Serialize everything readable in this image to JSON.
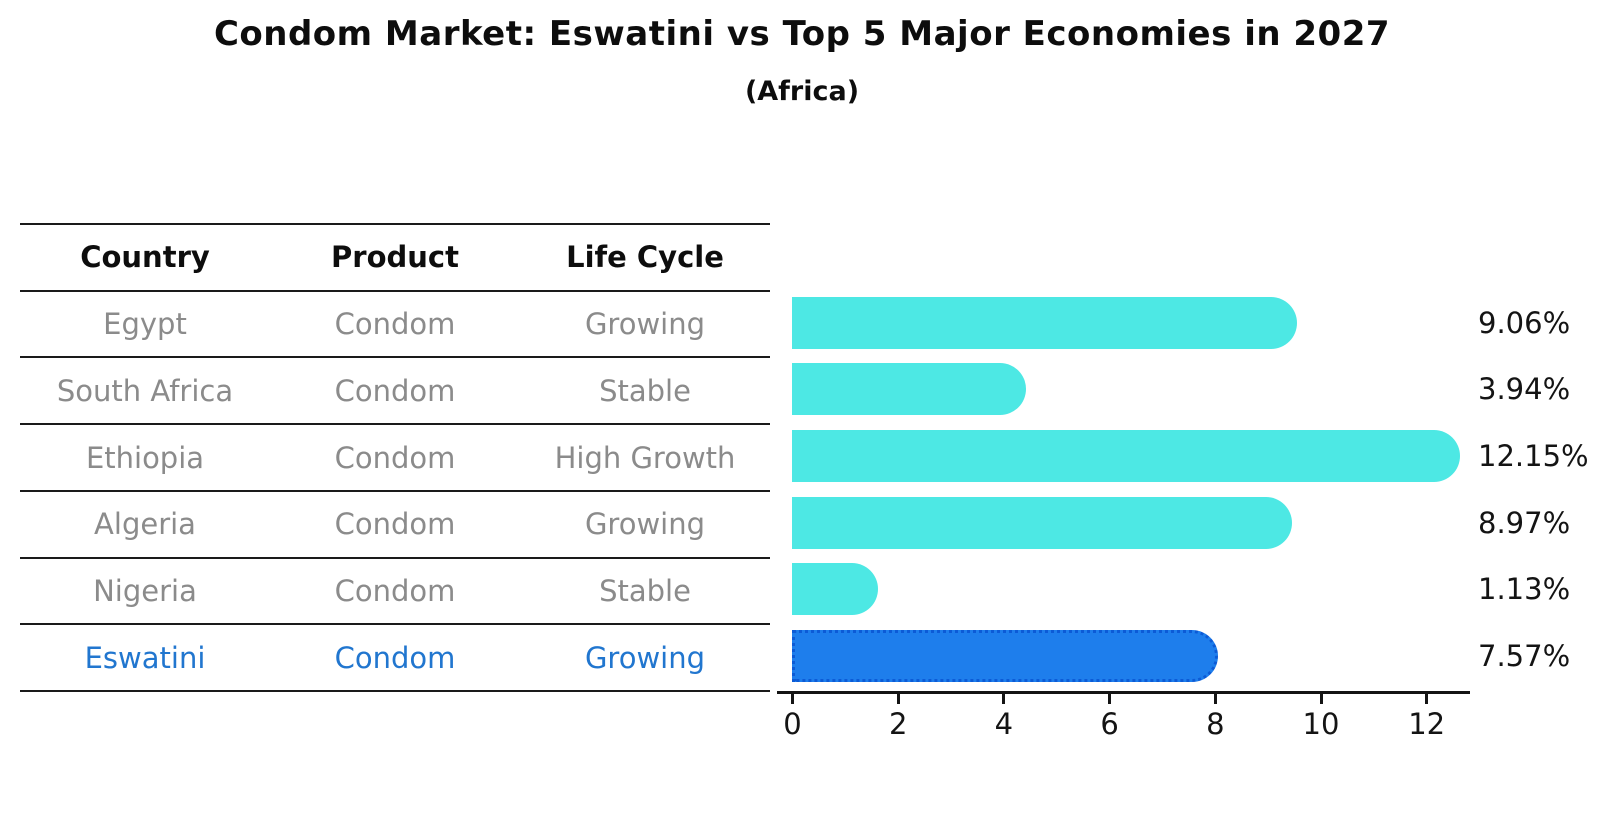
{
  "colors": {
    "bar": "#4DE8E4",
    "highlight_bar": "#1E7EEC",
    "highlight_border": "#0C5BD6",
    "highlight_text": "#2176CF",
    "muted_text": "#8B8B8B",
    "text": "#111111",
    "line": "#141414"
  },
  "table": {
    "headers": [
      "Country",
      "Product",
      "Life Cycle"
    ],
    "rows": [
      {
        "country": "Egypt",
        "product": "Condom",
        "life_cycle": "Growing",
        "highlight": false
      },
      {
        "country": "South Africa",
        "product": "Condom",
        "life_cycle": "Stable",
        "highlight": false
      },
      {
        "country": "Ethiopia",
        "product": "Condom",
        "life_cycle": "High Growth",
        "highlight": false
      },
      {
        "country": "Algeria",
        "product": "Condom",
        "life_cycle": "Growing",
        "highlight": false
      },
      {
        "country": "Nigeria",
        "product": "Condom",
        "life_cycle": "Stable",
        "highlight": false
      },
      {
        "country": "Eswatini",
        "product": "Condom",
        "life_cycle": "Growing",
        "highlight": true
      }
    ]
  },
  "chart_data": {
    "type": "bar",
    "orientation": "horizontal",
    "title": "Condom Market: Eswatini vs Top 5 Major Economies in 2027",
    "subtitle": "(Africa)",
    "categories": [
      "Egypt",
      "South Africa",
      "Ethiopia",
      "Algeria",
      "Nigeria",
      "Eswatini"
    ],
    "values": [
      9.06,
      3.94,
      12.15,
      8.97,
      1.13,
      7.57
    ],
    "value_labels": [
      "9.06%",
      "3.94%",
      "12.15%",
      "8.97%",
      "1.13%",
      "7.57%"
    ],
    "highlight_index": 5,
    "highlight_category": "Eswatini",
    "xticks": [
      0,
      2,
      4,
      6,
      8,
      10,
      12
    ],
    "xtick_labels": [
      "0",
      "2",
      "4",
      "6",
      "8",
      "10",
      "12"
    ],
    "xlim": [
      0,
      12.8
    ],
    "xlabel": "",
    "ylabel": "",
    "grid": false,
    "legend": false
  }
}
